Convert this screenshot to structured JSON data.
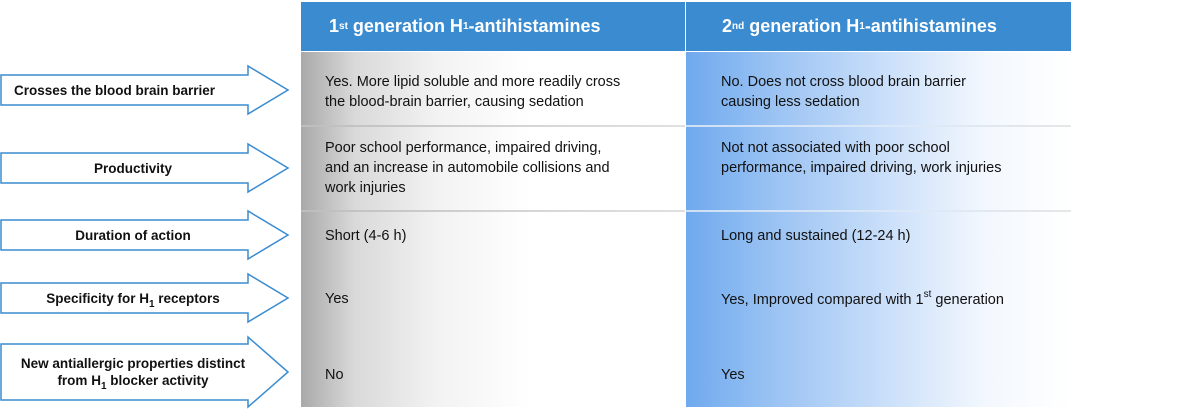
{
  "headers": [
    {
      "pre": "1",
      "sup": "st",
      "mid": " generation H",
      "sub": "1",
      "post": "-antihistamines"
    },
    {
      "pre": "2",
      "sup": "nd",
      "mid": " generation H",
      "sub": "1",
      "post": "-antihistamines"
    }
  ],
  "rows": [
    {
      "label": "Crosses the blood brain barrier",
      "col1": [
        "Yes. More lipid soluble and more readily cross",
        "the blood-brain barrier, causing sedation"
      ],
      "col2": [
        "No. Does not cross blood brain barrier",
        "causing less sedation"
      ]
    },
    {
      "label": "Productivity",
      "col1": [
        "Poor school performance, impaired driving,",
        "and an increase in automobile collisions and",
        "work injuries"
      ],
      "col2": [
        "Not not associated with poor school",
        "performance, impaired driving, work injuries"
      ]
    },
    {
      "label": "Duration of action",
      "col1": [
        "Short (4-6 h)"
      ],
      "col2": [
        "Long and sustained (12-24 h)"
      ]
    },
    {
      "label_pre": "Specificity for H",
      "label_sub": "1",
      "label_post": " receptors",
      "col1": [
        "Yes"
      ],
      "col2_pre": "Yes, Improved compared with 1",
      "col2_sup": "st",
      "col2_post": " generation"
    },
    {
      "label_line1": "New antiallergic properties distinct",
      "label_line2_pre": "from H",
      "label_line2_sub": "1",
      "label_line2_post": " blocker activity",
      "col1": [
        "No"
      ],
      "col2": [
        "Yes"
      ]
    }
  ],
  "colors": {
    "header_bg": "#3a8bd0",
    "arrow_stroke": "#3a8bd0",
    "col1_gradient_dark": "#a9a9a9",
    "col2_gradient_dark": "#6fa9ee"
  }
}
